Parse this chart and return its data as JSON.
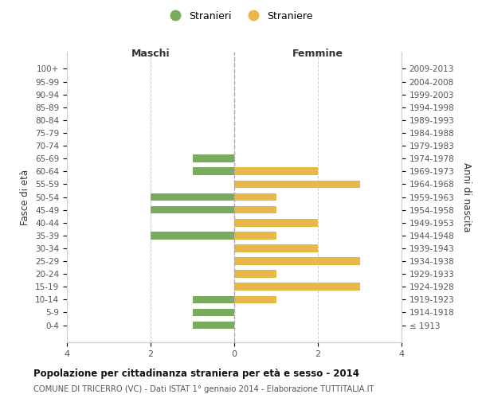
{
  "age_groups": [
    "100+",
    "95-99",
    "90-94",
    "85-89",
    "80-84",
    "75-79",
    "70-74",
    "65-69",
    "60-64",
    "55-59",
    "50-54",
    "45-49",
    "40-44",
    "35-39",
    "30-34",
    "25-29",
    "20-24",
    "15-19",
    "10-14",
    "5-9",
    "0-4"
  ],
  "birth_years": [
    "≤ 1913",
    "1914-1918",
    "1919-1923",
    "1924-1928",
    "1929-1933",
    "1934-1938",
    "1939-1943",
    "1944-1948",
    "1949-1953",
    "1954-1958",
    "1959-1963",
    "1964-1968",
    "1969-1973",
    "1974-1978",
    "1979-1983",
    "1984-1988",
    "1989-1993",
    "1994-1998",
    "1999-2003",
    "2004-2008",
    "2009-2013"
  ],
  "maschi": [
    0,
    0,
    0,
    0,
    0,
    0,
    0,
    1,
    1,
    0,
    2,
    2,
    0,
    2,
    0,
    0,
    0,
    0,
    1,
    1,
    1
  ],
  "femmine": [
    0,
    0,
    0,
    0,
    0,
    0,
    0,
    0,
    2,
    3,
    1,
    1,
    2,
    1,
    2,
    3,
    1,
    3,
    1,
    0,
    0
  ],
  "color_maschi": "#7aab5e",
  "color_femmine": "#e8b84b",
  "title": "Popolazione per cittadinanza straniera per età e sesso - 2014",
  "subtitle": "COMUNE DI TRICERRO (VC) - Dati ISTAT 1° gennaio 2014 - Elaborazione TUTTITALIA.IT",
  "legend_maschi": "Stranieri",
  "legend_femmine": "Straniere",
  "xlabel_left": "Maschi",
  "xlabel_right": "Femmine",
  "ylabel": "Fasce di età",
  "ylabel_right": "Anni di nascita",
  "xlim": 4,
  "background_color": "#ffffff",
  "grid_color": "#cccccc",
  "spine_color": "#cccccc"
}
